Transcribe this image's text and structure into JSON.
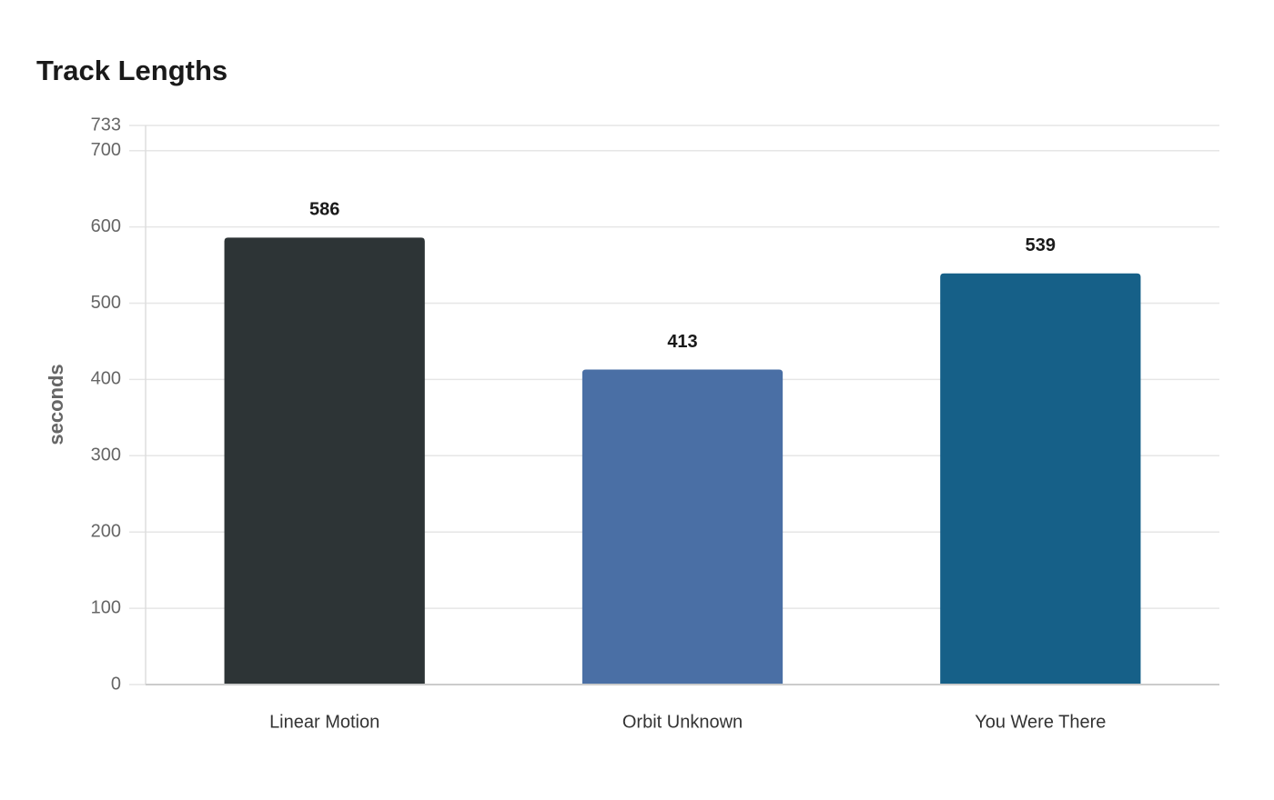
{
  "chart_data": {
    "type": "bar",
    "title": "Track Lengths",
    "y_label": "seconds",
    "categories": [
      "Linear Motion",
      "Orbit Unknown",
      "You Were There"
    ],
    "values": [
      586,
      413,
      539
    ],
    "colors": [
      "#2d3436",
      "#4a6fa5",
      "#166088"
    ],
    "ylim": [
      0,
      733
    ],
    "yticks": [
      0,
      100,
      200,
      300,
      400,
      500,
      600,
      700,
      733
    ],
    "grid": true
  }
}
